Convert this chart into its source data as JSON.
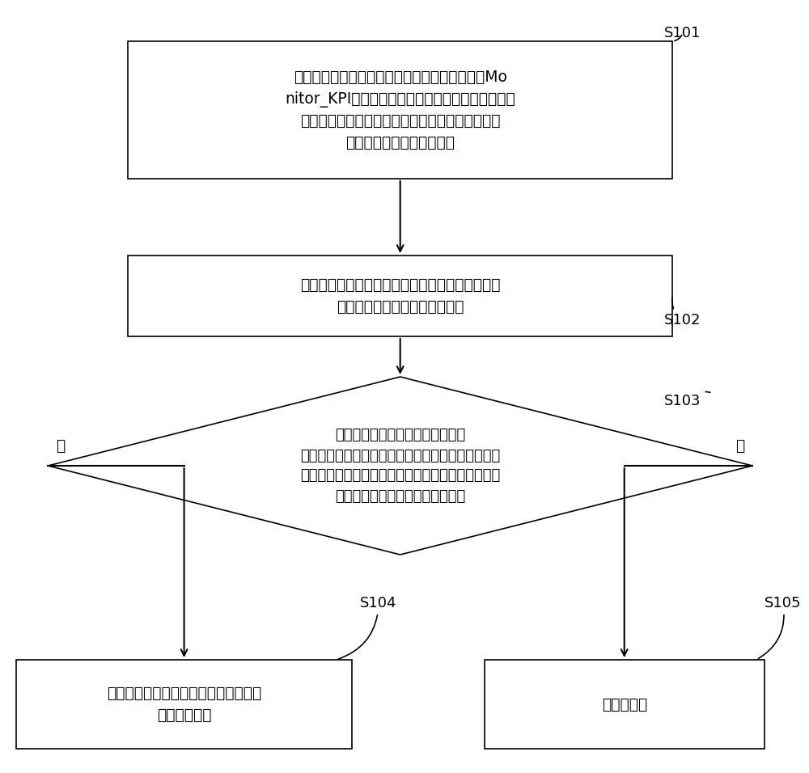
{
  "bg_color": "#ffffff",
  "box_edge_color": "#000000",
  "box_fill_color": "#ffffff",
  "diamond_fill_color": "#ffffff",
  "text_color": "#000000",
  "arrow_color": "#000000",
  "step_label_color": "#000000",
  "font_size_box": 13.5,
  "font_size_diamond": 13.0,
  "font_size_small_box": 13.5,
  "font_size_label": 13.0,
  "box1_text": "获取监控策略配置信息，监控策略配置信息通过Mo\nnitor_KPI设置的不同预定监控类别的监控策略，监\n控类别基于告警级别、告警时段和监控点对应的告\n警区域中的一个或多个确定",
  "box2_text": "根据监控策略配置信息中的监控类别，获取每个监\n控类别对应的监控点的监控数据",
  "diamond_text": "根据每个监控类别对应的监控点的\n监控数据，分别判断每个监控类别对应的监控点的监\n控数据是否满足监控策略配置信息中设定的相应监控\n类别对应的监控点的监控阈值条件",
  "box4_text": "根据满足的监控阈值条件所对应的告警\n级别进行告警",
  "box5_text": "不进行告警",
  "label_s101": "S101",
  "label_s102": "S102",
  "label_s103": "S103",
  "label_s104": "S104",
  "label_s105": "S105",
  "label_yes": "是",
  "label_no": "否"
}
